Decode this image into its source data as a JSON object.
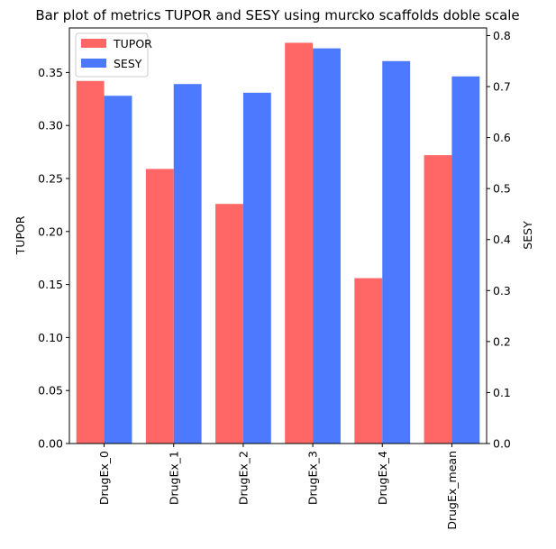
{
  "chart_data": {
    "type": "bar",
    "title": "Bar plot of metrics TUPOR and SESY using murcko scaffolds doble scale",
    "categories": [
      "DrugEx_0",
      "DrugEx_1",
      "DrugEx_2",
      "DrugEx_3",
      "DrugEx_4",
      "DrugEx_mean"
    ],
    "series": [
      {
        "name": "TUPOR",
        "axis": "left",
        "color": "#ff6666",
        "values": [
          0.342,
          0.259,
          0.226,
          0.378,
          0.156,
          0.272
        ]
      },
      {
        "name": "SESY",
        "axis": "right",
        "color": "#4d79ff",
        "values": [
          0.682,
          0.705,
          0.688,
          0.775,
          0.75,
          0.72
        ]
      }
    ],
    "ylabel_left": "TUPOR",
    "ylabel_right": "SESY",
    "ylim_left": [
      0,
      0.392
    ],
    "ylim_right": [
      0,
      0.815
    ],
    "yticks_left": [
      "0.00",
      "0.05",
      "0.10",
      "0.15",
      "0.20",
      "0.25",
      "0.30",
      "0.35"
    ],
    "yticks_right": [
      "0.0",
      "0.1",
      "0.2",
      "0.3",
      "0.4",
      "0.5",
      "0.6",
      "0.7",
      "0.8"
    ],
    "legend": "top-left",
    "grid": false
  }
}
